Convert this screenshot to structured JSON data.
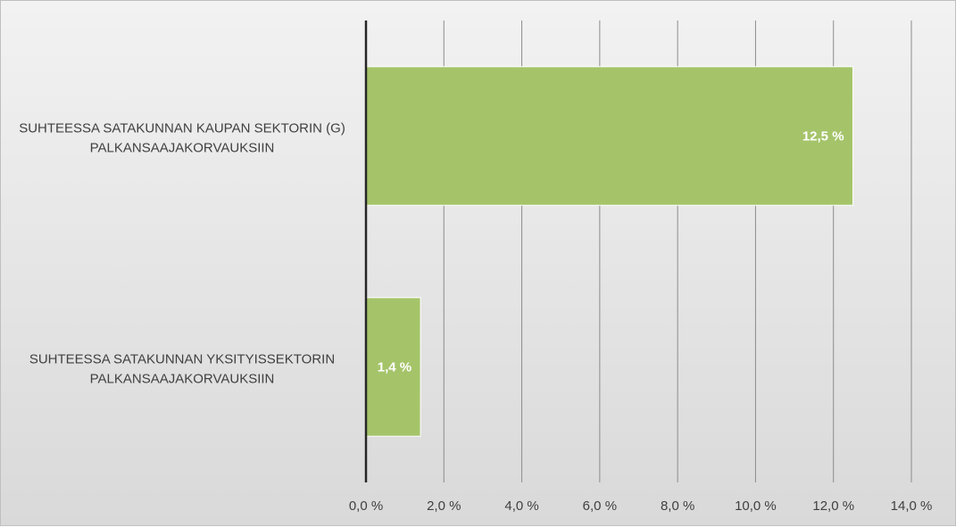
{
  "chart_data": {
    "type": "bar",
    "orientation": "horizontal",
    "categories": [
      "SUHTEESSA SATAKUNNAN KAUPAN SEKTORIN (G) PALKANSAAJAKORVAUKSIIN",
      "SUHTEESSA SATAKUNNAN YKSITYISSEKTORIN PALKANSAAJAKORVAUKSIIN"
    ],
    "category_lines": [
      [
        "SUHTEESSA SATAKUNNAN KAUPAN SEKTORIN (G)",
        "PALKANSAAJAKORVAUKSIIN"
      ],
      [
        "SUHTEESSA SATAKUNNAN YKSITYISSEKTORIN",
        "PALKANSAAJAKORVAUKSIIN"
      ]
    ],
    "values": [
      12.5,
      1.4
    ],
    "data_labels": [
      "12,5 %",
      "1,4 %"
    ],
    "xlim": [
      0,
      14
    ],
    "xticks": [
      0,
      2,
      4,
      6,
      8,
      10,
      12,
      14
    ],
    "xtick_labels": [
      "0,0 %",
      "2,0 %",
      "4,0 %",
      "6,0 %",
      "8,0 %",
      "10,0 %",
      "12,0 %",
      "14,0 %"
    ],
    "title": "",
    "xlabel": "",
    "ylabel": "",
    "grid": true,
    "legend": "none",
    "colors": {
      "bar": "#a5c46a",
      "bar_stroke": "#ffffff",
      "gridline": "#8c8c8c",
      "axis": "#262626",
      "text": "#404040",
      "data_label": "#ffffff"
    }
  }
}
